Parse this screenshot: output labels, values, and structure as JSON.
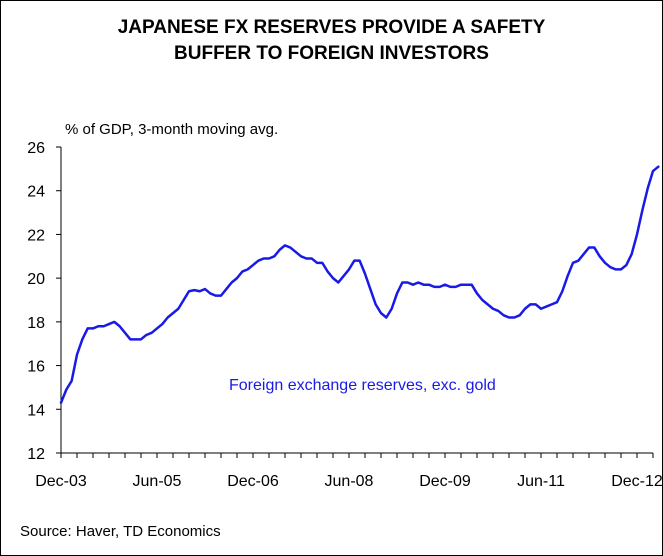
{
  "chart_data": {
    "type": "line",
    "title_line1": "JAPANESE FX RESERVES PROVIDE A SAFETY",
    "title_line2": "BUFFER TO FOREIGN INVESTORS",
    "ylabel": "% of GDP, 3-month moving avg.",
    "xlabel": "",
    "ylim": [
      12,
      26
    ],
    "yticks": [
      12,
      14,
      16,
      18,
      20,
      22,
      24,
      26
    ],
    "x_tick_labels": [
      "Dec-03",
      "Jun-05",
      "Dec-06",
      "Jun-08",
      "Dec-09",
      "Jun-11",
      "Dec-12"
    ],
    "x_start": "2003-12",
    "x_end": "2013-03",
    "annotation": "Foreign exchange reserves, exc. gold",
    "line_color": "#1a1ae6",
    "grid": false,
    "series": [
      {
        "values": [
          14.3,
          14.9,
          15.3,
          16.5,
          17.2,
          17.7,
          17.7,
          17.8,
          17.8,
          17.9,
          18.0,
          17.8,
          17.5,
          17.2,
          17.2,
          17.2,
          17.4,
          17.5,
          17.7,
          17.9,
          18.2,
          18.4,
          18.6,
          19.0,
          19.4,
          19.45,
          19.4,
          19.5,
          19.3,
          19.2,
          19.2,
          19.5,
          19.8,
          20.0,
          20.3,
          20.4,
          20.6,
          20.8,
          20.9,
          20.9,
          21.0,
          21.3,
          21.5,
          21.4,
          21.2,
          21.0,
          20.9,
          20.9,
          20.7,
          20.7,
          20.3,
          20.0,
          19.8,
          20.1,
          20.4,
          20.8,
          20.8,
          20.2,
          19.5,
          18.8,
          18.4,
          18.2,
          18.6,
          19.3,
          19.8,
          19.8,
          19.7,
          19.8,
          19.7,
          19.7,
          19.6,
          19.6,
          19.7,
          19.6,
          19.6,
          19.7,
          19.7,
          19.7,
          19.3,
          19.0,
          18.8,
          18.6,
          18.5,
          18.3,
          18.2,
          18.2,
          18.3,
          18.6,
          18.8,
          18.8,
          18.6,
          18.7,
          18.8,
          18.9,
          19.4,
          20.1,
          20.7,
          20.8,
          21.1,
          21.4,
          21.4,
          21.0,
          20.7,
          20.5,
          20.4,
          20.4,
          20.6,
          21.1,
          22.0,
          23.1,
          24.1,
          24.9,
          25.1
        ]
      }
    ]
  }
}
